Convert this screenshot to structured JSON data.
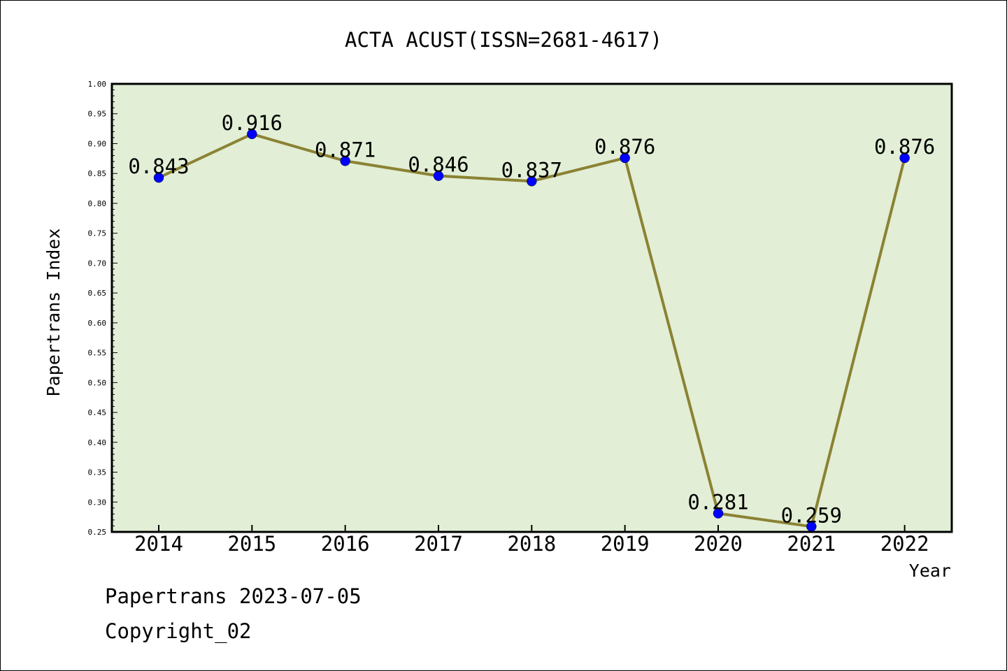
{
  "chart_data": {
    "type": "line",
    "title": "ACTA ACUST(ISSN=2681-4617)",
    "xlabel": "Year",
    "ylabel": "Papertrans Index",
    "categories": [
      "2014",
      "2015",
      "2016",
      "2017",
      "2018",
      "2019",
      "2020",
      "2021",
      "2022"
    ],
    "series": [
      {
        "values": [
          0.843,
          0.916,
          0.871,
          0.846,
          0.837,
          0.876,
          0.281,
          0.259,
          0.876
        ],
        "labels": [
          "0.843",
          "0.916",
          "0.871",
          "0.846",
          "0.837",
          "0.876",
          "0.281",
          "0.259",
          "0.876"
        ]
      }
    ],
    "ylim": [
      0.25,
      1.0
    ],
    "yticks": [
      "0.25",
      "0.30",
      "0.35",
      "0.40",
      "0.45",
      "0.50",
      "0.55",
      "0.60",
      "0.65",
      "0.70",
      "0.75",
      "0.80",
      "0.85",
      "0.90",
      "0.95",
      "1.00"
    ],
    "grid": false,
    "legend": "none",
    "colors": {
      "plot_background": "#e2efd6",
      "line": "#8b8234",
      "marker": "#0000ff",
      "axis": "#000000"
    }
  },
  "footer": {
    "date_line": "Papertrans 2023-07-05",
    "copyright_line": "Copyright_02"
  }
}
